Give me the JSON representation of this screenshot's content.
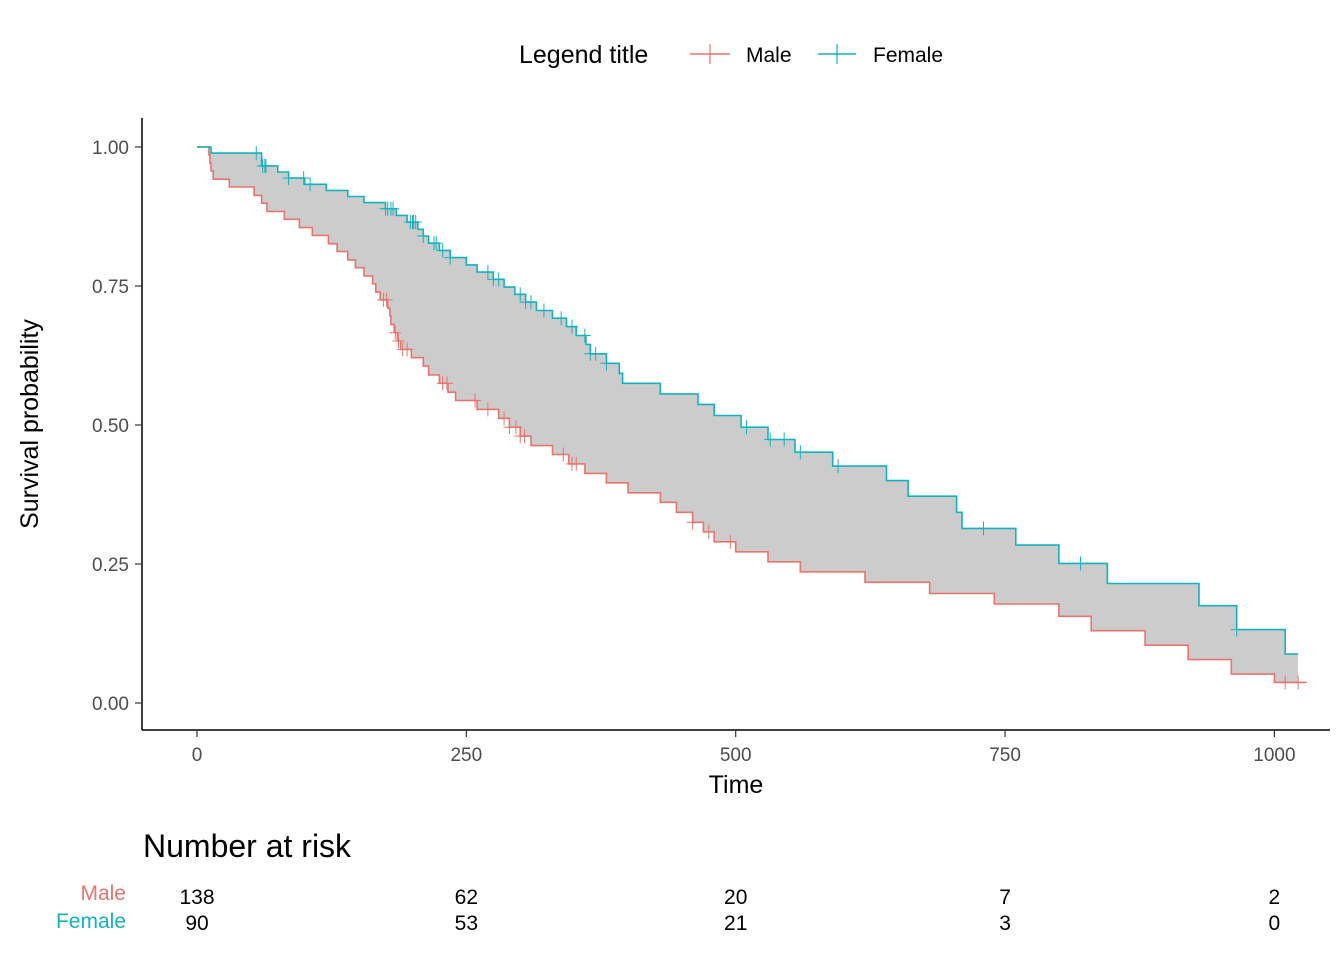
{
  "chart_data": {
    "type": "line",
    "subtype": "kaplan-meier survival curves with shaded difference",
    "xlabel": "Time",
    "ylabel": "Survival probability",
    "xlim": [
      -20,
      1045
    ],
    "ylim": [
      -0.05,
      1.05
    ],
    "x_ticks": [
      0,
      250,
      500,
      750,
      1000
    ],
    "y_ticks": [
      0.0,
      0.25,
      0.5,
      0.75,
      1.0
    ],
    "x_tick_labels": [
      "0",
      "250",
      "500",
      "750",
      "1000"
    ],
    "y_tick_labels": [
      "0.00",
      "0.25",
      "0.50",
      "0.75",
      "1.00"
    ],
    "grid": false,
    "legend": {
      "title": "Legend title",
      "position": "top",
      "entries": [
        "Male",
        "Female"
      ]
    },
    "fill_between_color": "#cccccc",
    "series": [
      {
        "name": "Male",
        "color": "#e7756e",
        "steps": [
          [
            0,
            1.0
          ],
          [
            11,
            0.986
          ],
          [
            12,
            0.971
          ],
          [
            13,
            0.957
          ],
          [
            15,
            0.942
          ],
          [
            30,
            0.928
          ],
          [
            53,
            0.913
          ],
          [
            60,
            0.899
          ],
          [
            65,
            0.884
          ],
          [
            81,
            0.87
          ],
          [
            95,
            0.855
          ],
          [
            107,
            0.841
          ],
          [
            122,
            0.826
          ],
          [
            130,
            0.812
          ],
          [
            140,
            0.797
          ],
          [
            147,
            0.783
          ],
          [
            155,
            0.768
          ],
          [
            163,
            0.754
          ],
          [
            166,
            0.739
          ],
          [
            170,
            0.725
          ],
          [
            177,
            0.71
          ],
          [
            179,
            0.696
          ],
          [
            180,
            0.681
          ],
          [
            183,
            0.666
          ],
          [
            186,
            0.651
          ],
          [
            189,
            0.636
          ],
          [
            199,
            0.621
          ],
          [
            210,
            0.606
          ],
          [
            215,
            0.59
          ],
          [
            225,
            0.575
          ],
          [
            233,
            0.559
          ],
          [
            240,
            0.544
          ],
          [
            260,
            0.528
          ],
          [
            280,
            0.512
          ],
          [
            290,
            0.496
          ],
          [
            300,
            0.48
          ],
          [
            310,
            0.463
          ],
          [
            330,
            0.447
          ],
          [
            345,
            0.43
          ],
          [
            360,
            0.413
          ],
          [
            380,
            0.396
          ],
          [
            400,
            0.378
          ],
          [
            430,
            0.361
          ],
          [
            445,
            0.343
          ],
          [
            460,
            0.325
          ],
          [
            470,
            0.308
          ],
          [
            480,
            0.29
          ],
          [
            500,
            0.272
          ],
          [
            530,
            0.254
          ],
          [
            560,
            0.236
          ],
          [
            620,
            0.217
          ],
          [
            680,
            0.197
          ],
          [
            740,
            0.178
          ],
          [
            800,
            0.156
          ],
          [
            830,
            0.13
          ],
          [
            880,
            0.104
          ],
          [
            920,
            0.078
          ],
          [
            960,
            0.052
          ],
          [
            1000,
            0.037
          ],
          [
            1030,
            0.037
          ]
        ],
        "censor_times": [
          173,
          176,
          184,
          187,
          191,
          195,
          228,
          232,
          258,
          270,
          285,
          290,
          296,
          300,
          304,
          340,
          348,
          352,
          460,
          475,
          495,
          1010,
          1022
        ]
      },
      {
        "name": "Female",
        "color": "#14b2be",
        "steps": [
          [
            0,
            1.0
          ],
          [
            13,
            0.989
          ],
          [
            60,
            0.966
          ],
          [
            75,
            0.955
          ],
          [
            85,
            0.944
          ],
          [
            100,
            0.933
          ],
          [
            120,
            0.922
          ],
          [
            140,
            0.911
          ],
          [
            155,
            0.9
          ],
          [
            175,
            0.889
          ],
          [
            185,
            0.877
          ],
          [
            195,
            0.865
          ],
          [
            205,
            0.852
          ],
          [
            210,
            0.84
          ],
          [
            215,
            0.827
          ],
          [
            225,
            0.814
          ],
          [
            235,
            0.801
          ],
          [
            250,
            0.788
          ],
          [
            260,
            0.775
          ],
          [
            275,
            0.762
          ],
          [
            285,
            0.748
          ],
          [
            295,
            0.735
          ],
          [
            305,
            0.721
          ],
          [
            315,
            0.706
          ],
          [
            330,
            0.692
          ],
          [
            343,
            0.677
          ],
          [
            352,
            0.661
          ],
          [
            361,
            0.645
          ],
          [
            365,
            0.628
          ],
          [
            380,
            0.611
          ],
          [
            392,
            0.593
          ],
          [
            395,
            0.575
          ],
          [
            430,
            0.556
          ],
          [
            465,
            0.537
          ],
          [
            480,
            0.517
          ],
          [
            505,
            0.496
          ],
          [
            530,
            0.474
          ],
          [
            555,
            0.451
          ],
          [
            590,
            0.426
          ],
          [
            640,
            0.4
          ],
          [
            660,
            0.372
          ],
          [
            705,
            0.343
          ],
          [
            710,
            0.314
          ],
          [
            760,
            0.284
          ],
          [
            800,
            0.251
          ],
          [
            845,
            0.215
          ],
          [
            930,
            0.175
          ],
          [
            965,
            0.132
          ],
          [
            1010,
            0.088
          ],
          [
            1022,
            0.088
          ]
        ],
        "censor_times": [
          55,
          61,
          63,
          64,
          85,
          99,
          105,
          175,
          177,
          180,
          182,
          198,
          200,
          201,
          203,
          210,
          220,
          222,
          228,
          235,
          270,
          275,
          280,
          300,
          305,
          310,
          322,
          338,
          348,
          360,
          365,
          370,
          380,
          510,
          532,
          545,
          560,
          595,
          730,
          820,
          965
        ]
      }
    ]
  },
  "risk_table": {
    "title": "Number at risk",
    "times": [
      0,
      250,
      500,
      750,
      1000
    ],
    "rows": [
      {
        "label": "Male",
        "color": "#e7756e",
        "values": [
          "138",
          "62",
          "20",
          "7",
          "2"
        ]
      },
      {
        "label": "Female",
        "color": "#14b2be",
        "values": [
          "90",
          "53",
          "21",
          "3",
          "0"
        ]
      }
    ]
  }
}
